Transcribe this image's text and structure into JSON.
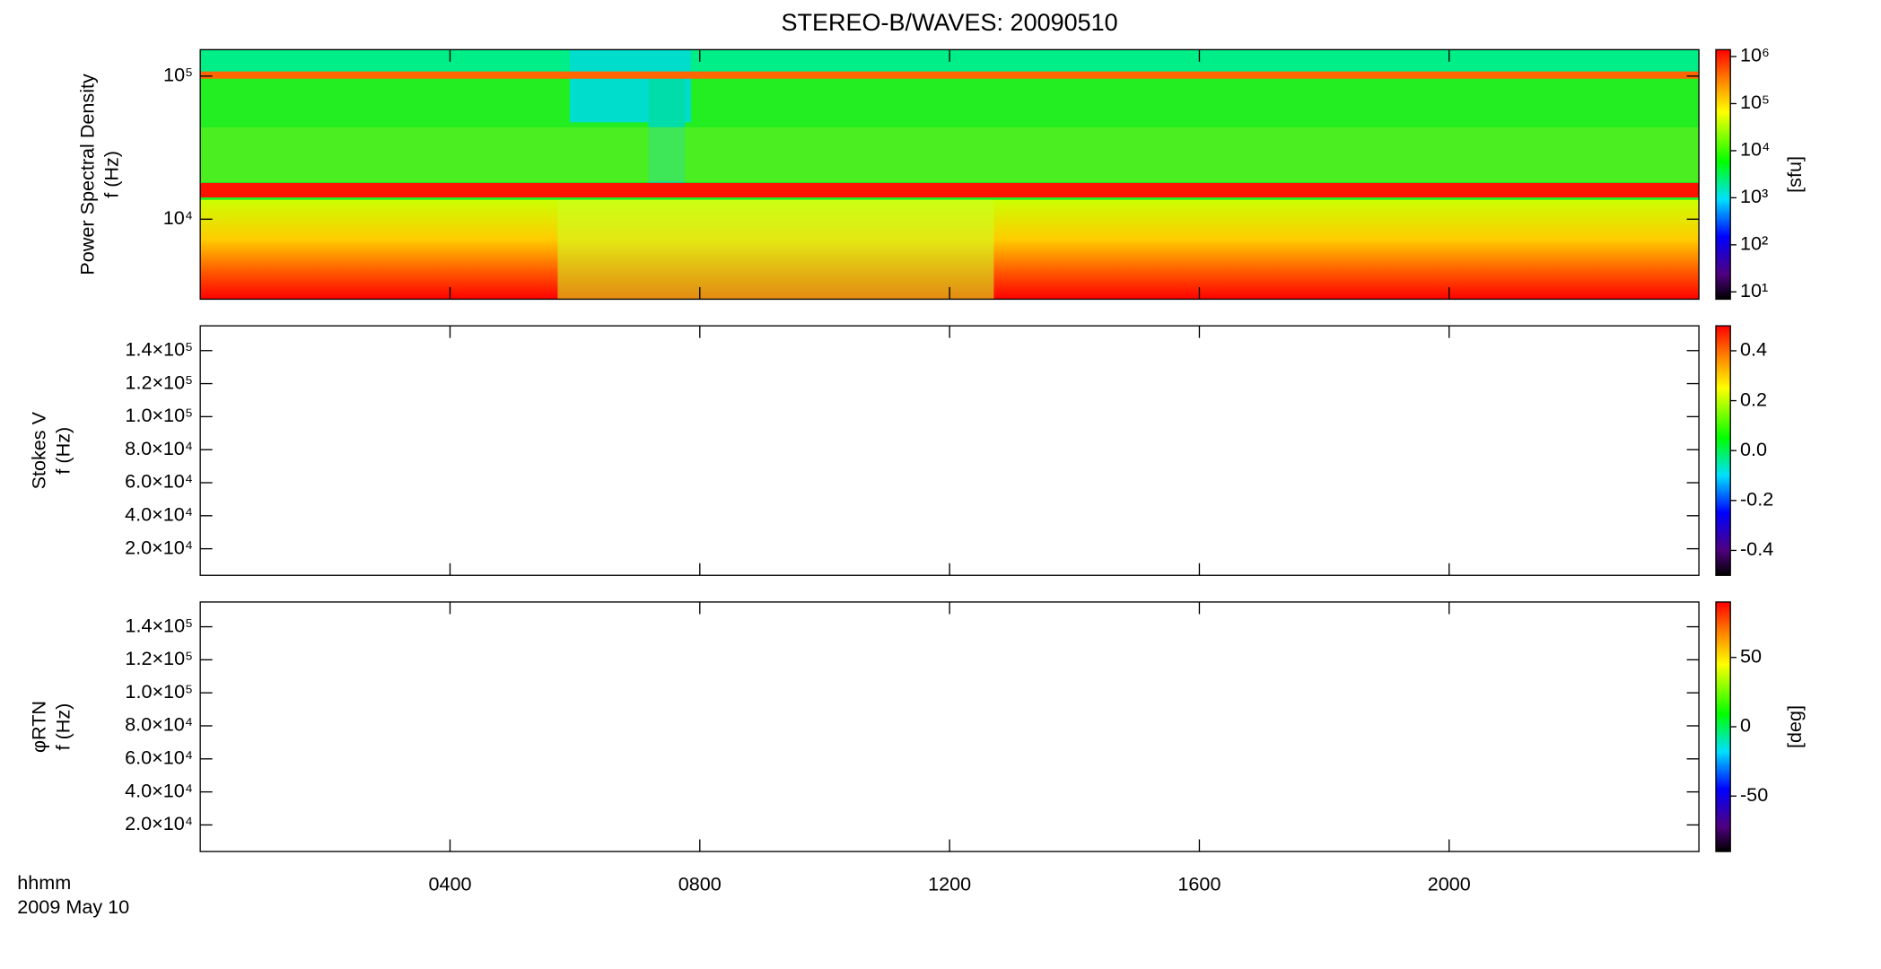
{
  "chart_data": [
    {
      "type": "spectrogram",
      "title": "STEREO-B/WAVES: 20090510",
      "y_label": [
        "Power Spectral Density",
        "f (Hz)"
      ],
      "ylog": true,
      "ylim": [
        2760,
        153000
      ],
      "yticks": [
        {
          "value": 10000,
          "label": "10⁴"
        },
        {
          "value": 100000,
          "label": "10⁵"
        }
      ],
      "xlim": [
        0,
        24
      ],
      "colorbar": {
        "log": true,
        "zlim": [
          7,
          1400000
        ],
        "label": "[sfu]",
        "ticks": [
          {
            "value": 10,
            "label": "10¹"
          },
          {
            "value": 100,
            "label": "10²"
          },
          {
            "value": 1000,
            "label": "10³"
          },
          {
            "value": 10000,
            "label": "10⁴"
          },
          {
            "value": 100000,
            "label": "10⁵"
          },
          {
            "value": 1000000,
            "label": "10⁶"
          }
        ]
      }
    },
    {
      "type": "spectrogram",
      "y_label": [
        "Stokes V",
        "f (Hz)"
      ],
      "ylog": false,
      "ylim": [
        3900,
        155000
      ],
      "yticks": [
        {
          "value": 20000,
          "label": "2.0×10⁴"
        },
        {
          "value": 40000,
          "label": "4.0×10⁴"
        },
        {
          "value": 60000,
          "label": "6.0×10⁴"
        },
        {
          "value": 80000,
          "label": "8.0×10⁴"
        },
        {
          "value": 100000,
          "label": "1.0×10⁵"
        },
        {
          "value": 120000,
          "label": "1.2×10⁵"
        },
        {
          "value": 140000,
          "label": "1.4×10⁵"
        }
      ],
      "xlim": [
        0,
        24
      ],
      "colorbar": {
        "log": false,
        "zlim": [
          -0.5,
          0.5
        ],
        "ticks": [
          -0.4,
          -0.2,
          {
            "value": 0,
            "label": "0.0"
          },
          0.2,
          0.4
        ]
      }
    },
    {
      "type": "spectrogram",
      "y_label": [
        "φRTN",
        "f (Hz)"
      ],
      "ylog": false,
      "ylim": [
        3900,
        155000
      ],
      "yticks": [
        {
          "value": 20000,
          "label": "2.0×10⁴"
        },
        {
          "value": 40000,
          "label": "4.0×10⁴"
        },
        {
          "value": 60000,
          "label": "6.0×10⁴"
        },
        {
          "value": 80000,
          "label": "8.0×10⁴"
        },
        {
          "value": 100000,
          "label": "1.0×10⁵"
        },
        {
          "value": 120000,
          "label": "1.2×10⁵"
        },
        {
          "value": 140000,
          "label": "1.4×10⁵"
        }
      ],
      "xlim": [
        0,
        24
      ],
      "xticks": [
        {
          "value": 4,
          "label": "0400"
        },
        {
          "value": 8,
          "label": "0800"
        },
        {
          "value": 12,
          "label": "1200"
        },
        {
          "value": 16,
          "label": "1600"
        },
        {
          "value": 20,
          "label": "2000"
        }
      ],
      "x_label": [
        "hhmm",
        "2009 May 10"
      ],
      "colorbar": {
        "log": false,
        "zlim": [
          -90,
          90
        ],
        "label": "[deg]",
        "ticks": [
          -50,
          0,
          50
        ]
      }
    }
  ]
}
